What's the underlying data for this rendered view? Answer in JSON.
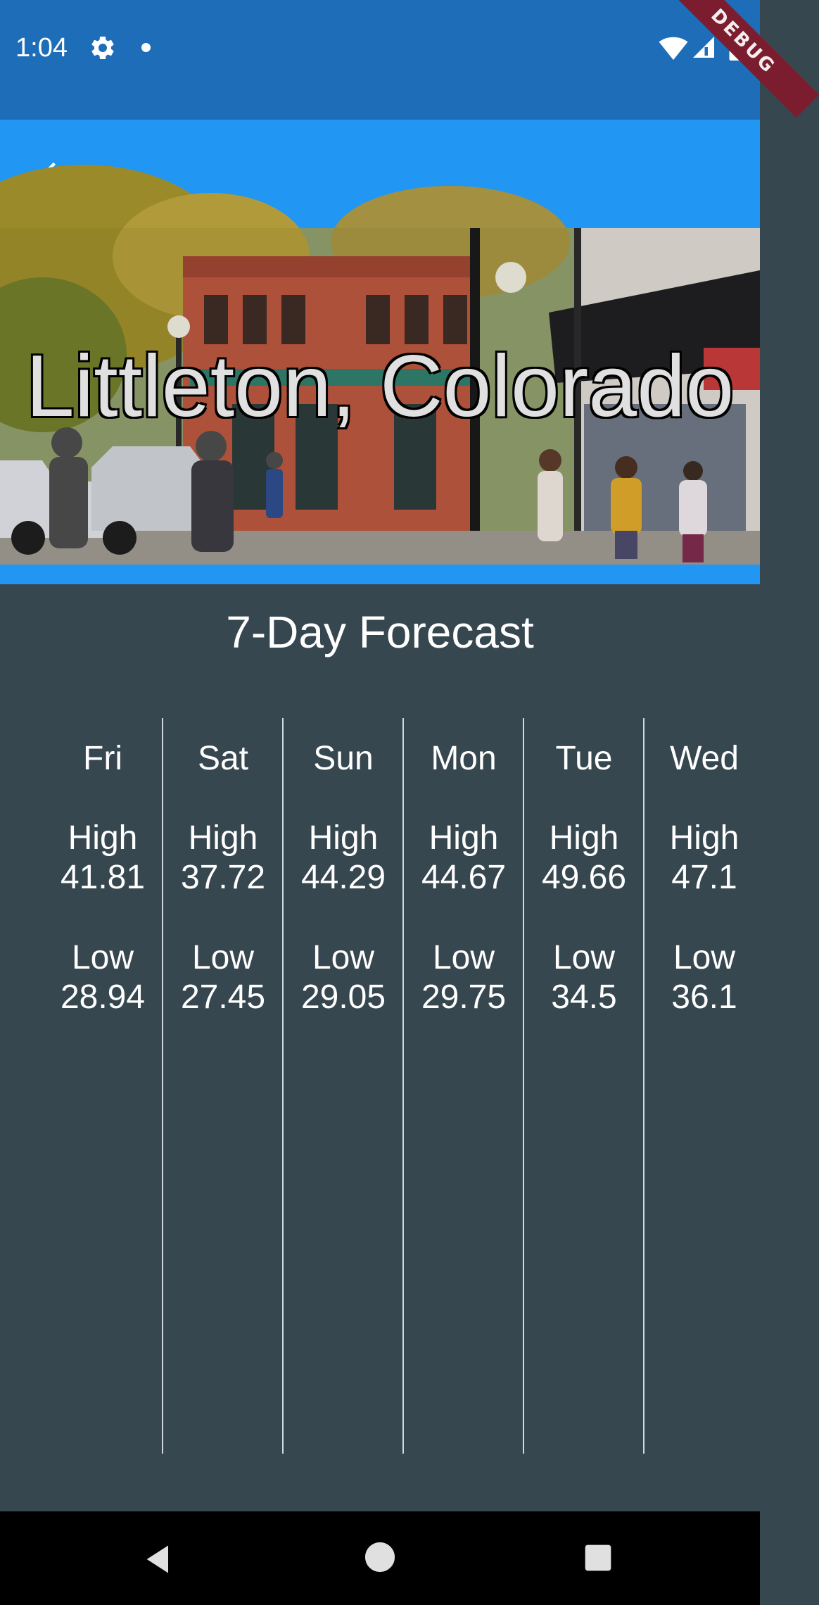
{
  "status_bar": {
    "time": "1:04",
    "debug_label": "DEBUG",
    "icons": [
      "gear-icon",
      "dot-icon",
      "wifi-icon",
      "signal-icon",
      "battery-icon"
    ]
  },
  "app_bar": {
    "back_icon": "arrow-back-icon",
    "color": "#2196f3"
  },
  "hero": {
    "city": "Littleton, Colorado"
  },
  "forecast": {
    "title": "7-Day Forecast",
    "high_label": "High",
    "low_label": "Low",
    "days": [
      {
        "day": "Fri",
        "high": "41.81",
        "low": "28.94"
      },
      {
        "day": "Sat",
        "high": "37.72",
        "low": "27.45"
      },
      {
        "day": "Sun",
        "high": "44.29",
        "low": "29.05"
      },
      {
        "day": "Mon",
        "high": "44.67",
        "low": "29.75"
      },
      {
        "day": "Tue",
        "high": "49.66",
        "low": "34.5"
      },
      {
        "day": "Wed",
        "high": "47.1",
        "low": "36.1"
      }
    ]
  },
  "colors": {
    "status_bar": "#1e6db8",
    "app_bar": "#2196f3",
    "background": "#37474f",
    "nav_bar": "#000000"
  }
}
